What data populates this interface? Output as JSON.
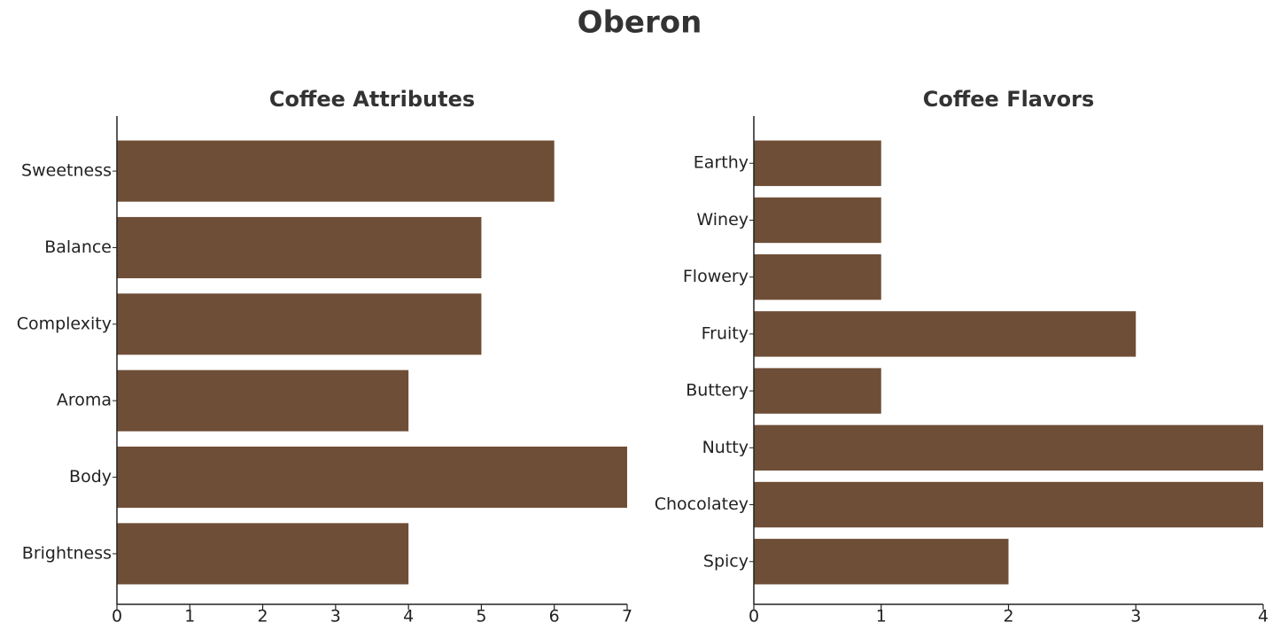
{
  "title": "Oberon",
  "chart_data": [
    {
      "type": "bar",
      "orientation": "horizontal",
      "title": "Coffee Attributes",
      "categories": [
        "Sweetness",
        "Balance",
        "Complexity",
        "Aroma",
        "Body",
        "Brightness"
      ],
      "values": [
        6,
        5,
        5,
        4,
        7,
        4
      ],
      "color": "#6f4e37",
      "xlim": [
        0,
        7
      ],
      "xticks": [
        0,
        1,
        2,
        3,
        4,
        5,
        6,
        7
      ]
    },
    {
      "type": "bar",
      "orientation": "horizontal",
      "title": "Coffee Flavors",
      "categories": [
        "Earthy",
        "Winey",
        "Flowery",
        "Fruity",
        "Buttery",
        "Nutty",
        "Chocolatey",
        "Spicy"
      ],
      "values": [
        1,
        1,
        1,
        3,
        1,
        4,
        4,
        2
      ],
      "color": "#6f4e37",
      "xlim": [
        0,
        4
      ],
      "xticks": [
        0,
        1,
        2,
        3,
        4
      ]
    }
  ]
}
